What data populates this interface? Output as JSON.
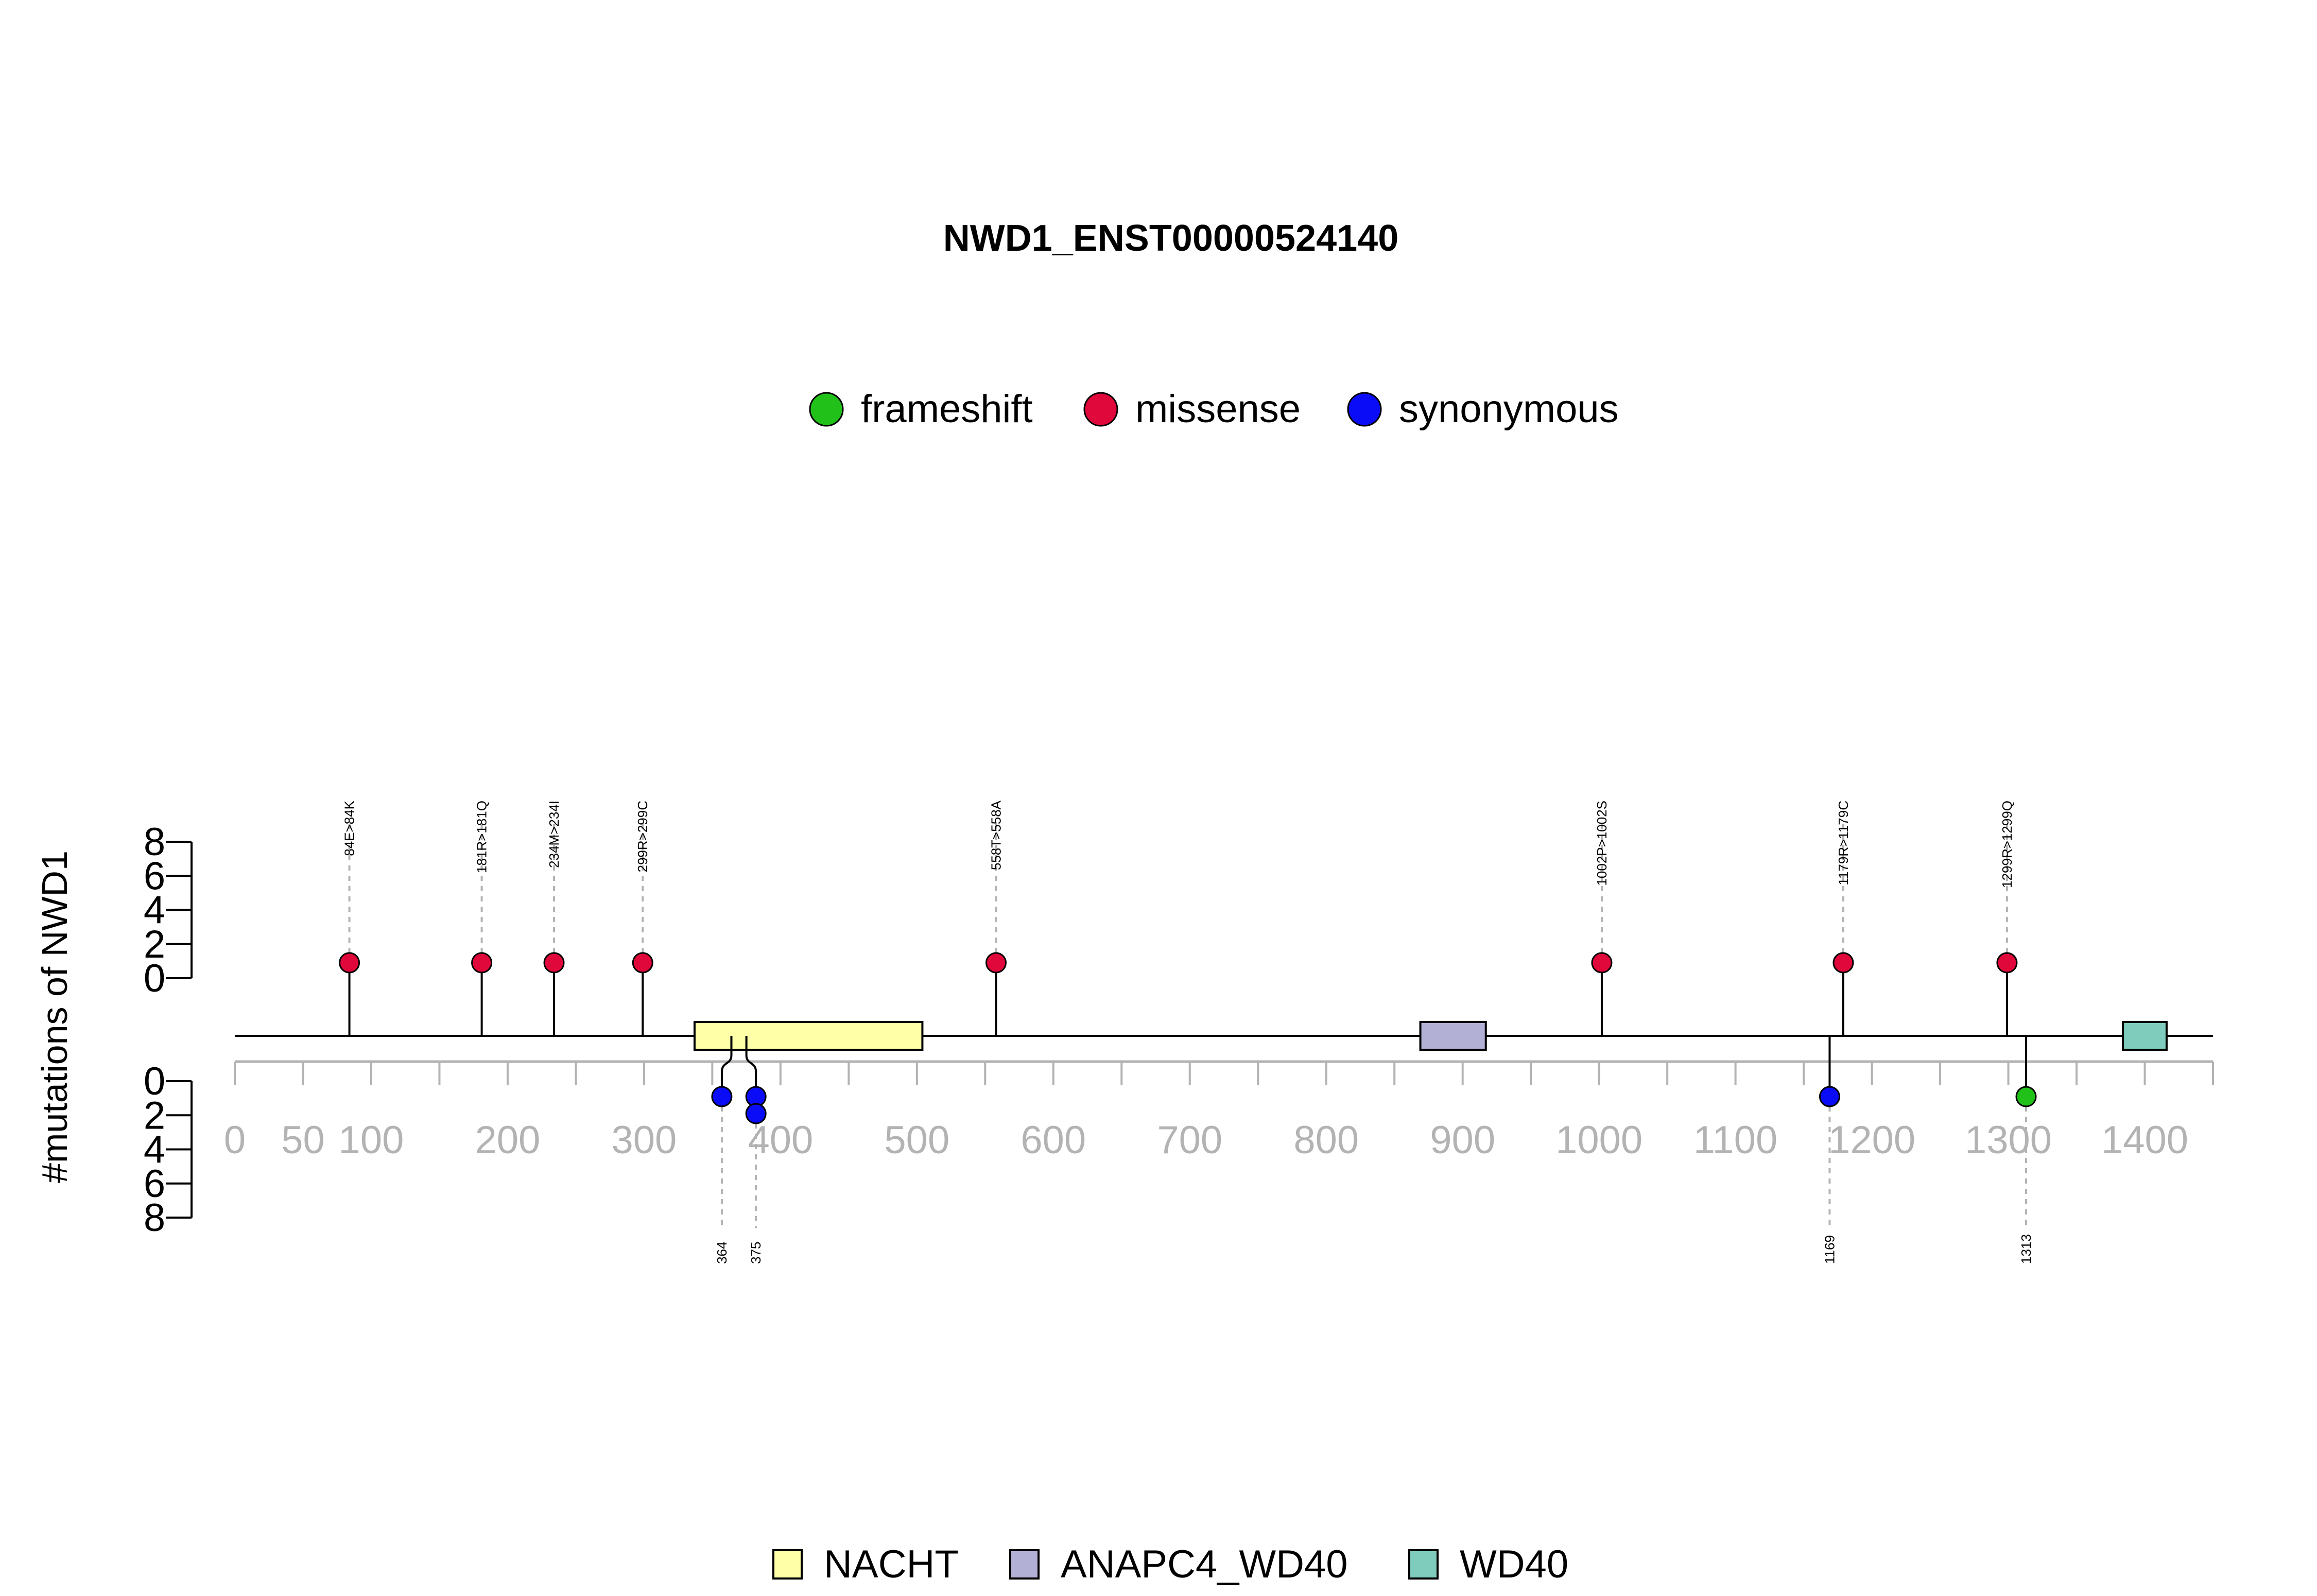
{
  "chart_data": {
    "type": "lollipop",
    "title": "NWD1_ENST00000524140",
    "ylabel": "#mutations of NWD1",
    "x_ticks": [
      0,
      50,
      100,
      200,
      300,
      400,
      500,
      600,
      700,
      800,
      900,
      1000,
      1100,
      1200,
      1300,
      1400
    ],
    "x_range": [
      0,
      1450
    ],
    "y_ticks_upper": [
      0,
      2,
      4,
      6,
      8
    ],
    "y_ticks_lower": [
      0,
      2,
      4,
      6,
      8
    ],
    "y_range": [
      0,
      8
    ],
    "mutation_legend": [
      {
        "name": "frameshift",
        "color": "#22c11a"
      },
      {
        "name": "missense",
        "color": "#e0073b"
      },
      {
        "name": "synonymous",
        "color": "#0a0cf7"
      }
    ],
    "upper_mutations": [
      {
        "position": 84,
        "label": "84E>84K",
        "type": "missense",
        "count": 1
      },
      {
        "position": 181,
        "label": "181R>181Q",
        "type": "missense",
        "count": 1
      },
      {
        "position": 234,
        "label": "234M>234I",
        "type": "missense",
        "count": 1
      },
      {
        "position": 299,
        "label": "299R>299C",
        "type": "missense",
        "count": 1
      },
      {
        "position": 558,
        "label": "558T>558A",
        "type": "missense",
        "count": 1
      },
      {
        "position": 1002,
        "label": "1002P>1002S",
        "type": "missense",
        "count": 1
      },
      {
        "position": 1179,
        "label": "1179R>1179C",
        "type": "missense",
        "count": 1
      },
      {
        "position": 1299,
        "label": "1299R>1299Q",
        "type": "missense",
        "count": 1
      }
    ],
    "lower_mutations": [
      {
        "position": 364,
        "label": "364",
        "type": "synonymous",
        "count": 1,
        "display_position": 357
      },
      {
        "position": 375,
        "label": "375",
        "type": "synonymous",
        "count": 2,
        "display_position": 382
      },
      {
        "position": 1169,
        "label": "1169",
        "type": "synonymous",
        "count": 1
      },
      {
        "position": 1313,
        "label": "1313",
        "type": "frameshift",
        "count": 1
      }
    ],
    "domains": [
      {
        "name": "NACHT",
        "start": 337,
        "end": 504,
        "color": "#ffffa8"
      },
      {
        "name": "ANAPC4_WD40",
        "start": 869,
        "end": 917,
        "color": "#b3b0d6"
      },
      {
        "name": "WD40",
        "start": 1384,
        "end": 1416,
        "color": "#7fccbc"
      }
    ],
    "domain_legend": [
      "NACHT",
      "ANAPC4_WD40",
      "WD40"
    ]
  }
}
